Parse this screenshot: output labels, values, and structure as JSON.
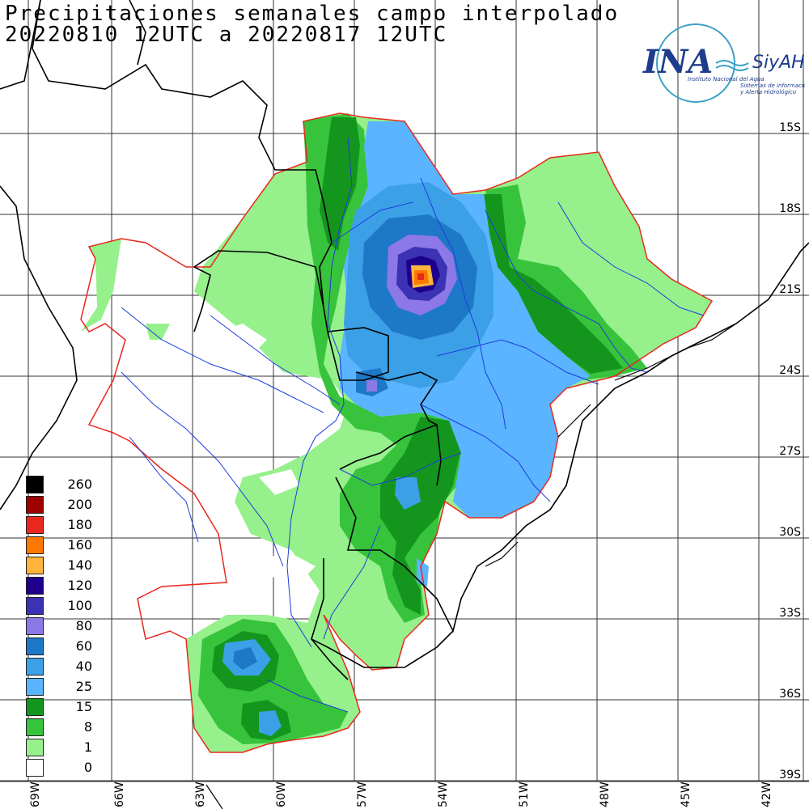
{
  "title": {
    "line1": "Precipitaciones semanales campo interpolado",
    "line2": "20220810 12UTC a 20220817 12UTC"
  },
  "logo": {
    "name": "INA",
    "brand": "SiyAH",
    "subtitle1": "Instituto Nacional del Agua",
    "subtitle2": "Sistemas de información",
    "subtitle3": "y Alerta Hidrológico"
  },
  "legend": [
    {
      "label": "260",
      "color": "#000000"
    },
    {
      "label": "200",
      "color": "#9e0000"
    },
    {
      "label": "180",
      "color": "#e8281e"
    },
    {
      "label": "160",
      "color": "#ff7800"
    },
    {
      "label": "140",
      "color": "#ffb43c"
    },
    {
      "label": "120",
      "color": "#1e008c"
    },
    {
      "label": "100",
      "color": "#3c32b4"
    },
    {
      "label": "80",
      "color": "#8c78e6"
    },
    {
      "label": "60",
      "color": "#1e78c8"
    },
    {
      "label": "40",
      "color": "#3ca0e6"
    },
    {
      "label": "25",
      "color": "#5ab4ff"
    },
    {
      "label": "15",
      "color": "#14961e"
    },
    {
      "label": "8",
      "color": "#37c33c"
    },
    {
      "label": "1",
      "color": "#96f08c"
    },
    {
      "label": "0",
      "color": "#ffffff"
    }
  ],
  "lat_labels": [
    "15S",
    "18S",
    "21S",
    "24S",
    "27S",
    "30S",
    "33S",
    "36S",
    "39S"
  ],
  "lon_labels": [
    "69W",
    "66W",
    "63W",
    "60W",
    "57W",
    "54W",
    "51W",
    "48W",
    "45W",
    "42W"
  ]
}
